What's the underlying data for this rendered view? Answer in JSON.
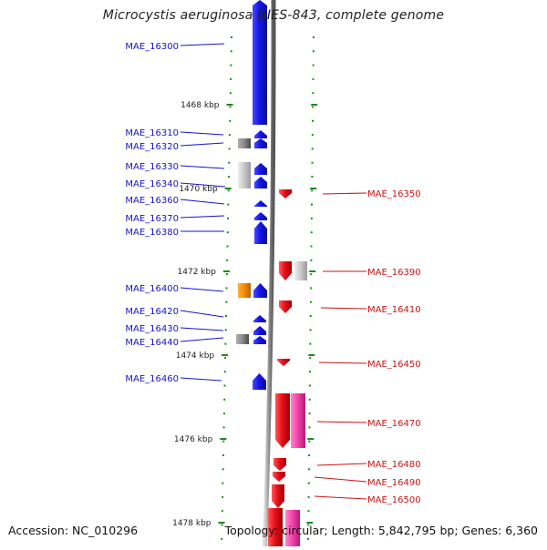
{
  "title": "Microcystis aeruginosa NIES-843, complete genome",
  "footer": {
    "accession": "Accession: NC_010296",
    "summary": "Topology: circular; Length: 5,842,795 bp; Genes: 6,360"
  },
  "colors": {
    "forward_cds": "#1515e6",
    "reverse_cds": "#e8101a",
    "rna_gray": "#8a8a8a",
    "light_gray": "#c8c8c8",
    "orange": "#f08c00",
    "pink": "#f23fa8",
    "backbone": "#8c8c8c",
    "ticks": "#1c8a1c",
    "left_label": "#1515c8",
    "right_label": "#c81515"
  },
  "ruler": [
    {
      "label": "1468 kbp"
    },
    {
      "label": "1470 kbp"
    },
    {
      "label": "1472 kbp"
    },
    {
      "label": "1474 kbp"
    },
    {
      "label": "1476 kbp"
    },
    {
      "label": "1478 kbp"
    }
  ],
  "left_genes": [
    {
      "name": "MAE_16300"
    },
    {
      "name": "MAE_16310"
    },
    {
      "name": "MAE_16320"
    },
    {
      "name": "MAE_16330"
    },
    {
      "name": "MAE_16340"
    },
    {
      "name": "MAE_16360"
    },
    {
      "name": "MAE_16370"
    },
    {
      "name": "MAE_16380"
    },
    {
      "name": "MAE_16400"
    },
    {
      "name": "MAE_16420"
    },
    {
      "name": "MAE_16430"
    },
    {
      "name": "MAE_16440"
    },
    {
      "name": "MAE_16460"
    }
  ],
  "right_genes": [
    {
      "name": "MAE_16350"
    },
    {
      "name": "MAE_16390"
    },
    {
      "name": "MAE_16410"
    },
    {
      "name": "MAE_16450"
    },
    {
      "name": "MAE_16470"
    },
    {
      "name": "MAE_16480"
    },
    {
      "name": "MAE_16490"
    },
    {
      "name": "MAE_16500"
    }
  ]
}
